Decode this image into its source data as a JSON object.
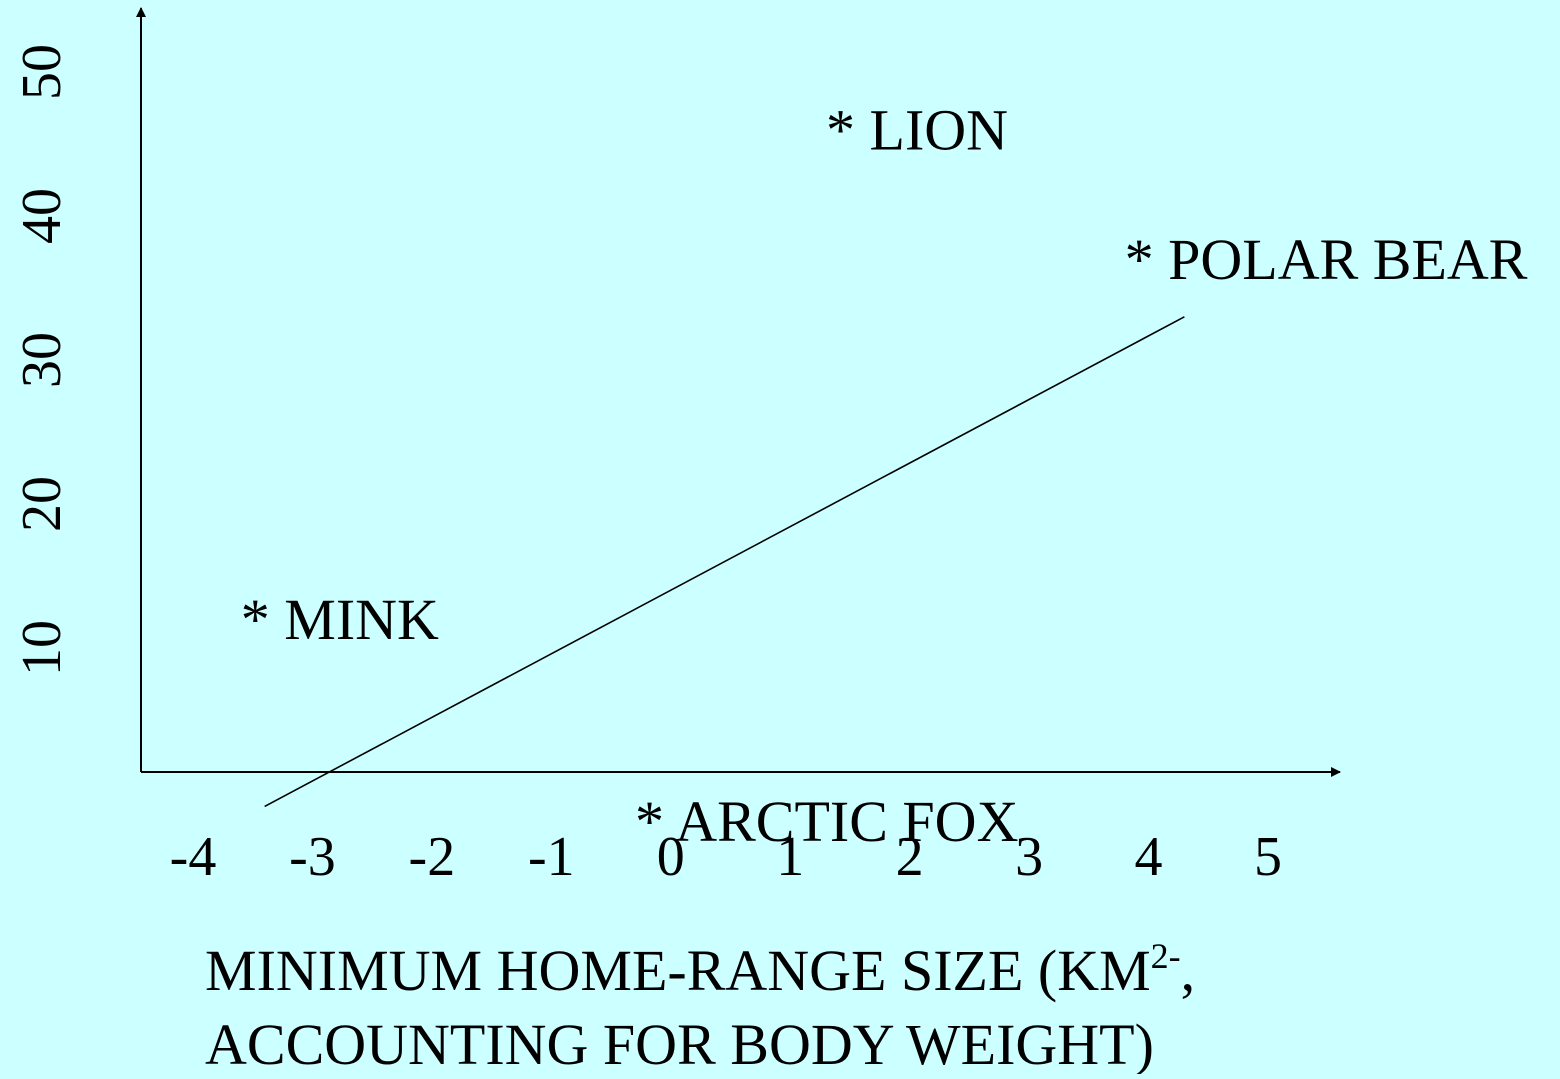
{
  "background_color": "#ccffff",
  "chart_data": {
    "type": "scatter",
    "title": "",
    "xlabel": {
      "line1_main": "MINIMUM HOME-RANGE SIZE (KM",
      "line1_sup": "2-",
      "line1_end": ",",
      "line2": "ACCOUNTING FOR BODY WEIGHT)"
    },
    "ylabel": "",
    "x_ticks": [
      "-4",
      "-3",
      "-2",
      "-1",
      "0",
      "1",
      "2",
      "3",
      "4",
      "5"
    ],
    "y_ticks": [
      "10",
      "20",
      "30",
      "40",
      "50"
    ],
    "xlim": [
      -4,
      5
    ],
    "ylim": [
      0,
      50
    ],
    "points": [
      {
        "label": "* MINK",
        "x": -3.6,
        "y": 12
      },
      {
        "label": "* LION",
        "x": 1.3,
        "y": 46
      },
      {
        "label": "* POLAR BEAR",
        "x": 3.8,
        "y": 37
      },
      {
        "label": "* ARCTIC FOX",
        "x": -0.3,
        "y": -2
      }
    ],
    "trend_line": {
      "x": [
        -3.4,
        4.3
      ],
      "y": [
        -1,
        33
      ]
    }
  }
}
